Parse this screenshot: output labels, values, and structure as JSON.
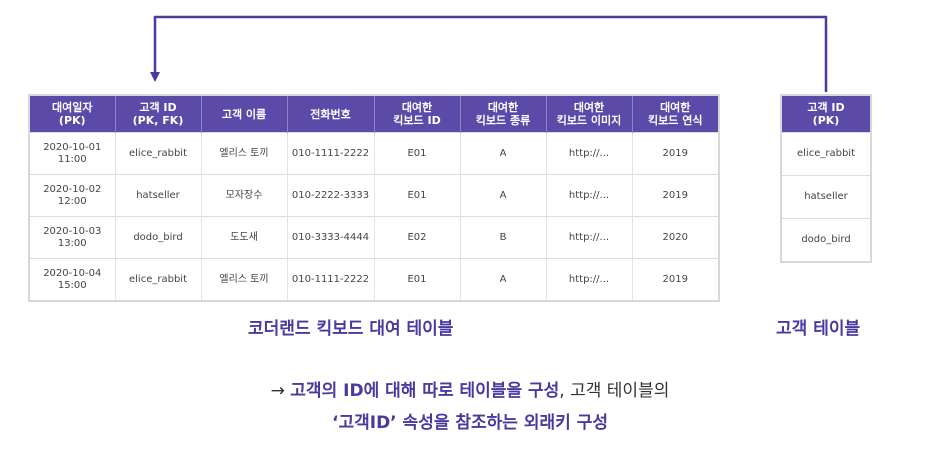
{
  "main_table": {
    "caption": "코더랜드 킥보드 대여 테이블",
    "headers": [
      [
        "대여일자",
        "(PK)"
      ],
      [
        "고객 ID",
        "(PK, FK)"
      ],
      [
        "고객 이름"
      ],
      [
        "전화번호"
      ],
      [
        "대여한",
        "킥보드 ID"
      ],
      [
        "대여한",
        "킥보드 종류"
      ],
      [
        "대여한",
        "킥보드 이미지"
      ],
      [
        "대여한",
        "킥보드 연식"
      ]
    ],
    "rows": [
      [
        [
          "2020-10-01",
          "11:00"
        ],
        [
          "elice_rabbit"
        ],
        [
          "엘리스 토끼"
        ],
        [
          "010-1111-2222"
        ],
        [
          "E01"
        ],
        [
          "A"
        ],
        [
          "http://..."
        ],
        [
          "2019"
        ]
      ],
      [
        [
          "2020-10-02",
          "12:00"
        ],
        [
          "hatseller"
        ],
        [
          "모자장수"
        ],
        [
          "010-2222-3333"
        ],
        [
          "E01"
        ],
        [
          "A"
        ],
        [
          "http://..."
        ],
        [
          "2019"
        ]
      ],
      [
        [
          "2020-10-03",
          "13:00"
        ],
        [
          "dodo_bird"
        ],
        [
          "도도새"
        ],
        [
          "010-3333-4444"
        ],
        [
          "E02"
        ],
        [
          "B"
        ],
        [
          "http://..."
        ],
        [
          "2020"
        ]
      ],
      [
        [
          "2020-10-04",
          "15:00"
        ],
        [
          "elice_rabbit"
        ],
        [
          "엘리스 토끼"
        ],
        [
          "010-1111-2222"
        ],
        [
          "E01"
        ],
        [
          "A"
        ],
        [
          "http://..."
        ],
        [
          "2019"
        ]
      ]
    ]
  },
  "customer_table": {
    "caption": "고객 테이블",
    "header": [
      "고객 ID",
      "(PK)"
    ],
    "rows": [
      "elice_rabbit",
      "hatseller",
      "dodo_bird"
    ]
  },
  "footnote": {
    "line1_arrow": "→ ",
    "line1_hl": "고객의 ID에 대해 따로 테이블을 구성",
    "line1_plain": ", 고객 테이블의",
    "line2_hl": "‘고객ID’ 속성을 참조하는 외래키 구성"
  },
  "colors": {
    "accent": "#4a3a9e",
    "header_bg": "#5b4aa8"
  }
}
